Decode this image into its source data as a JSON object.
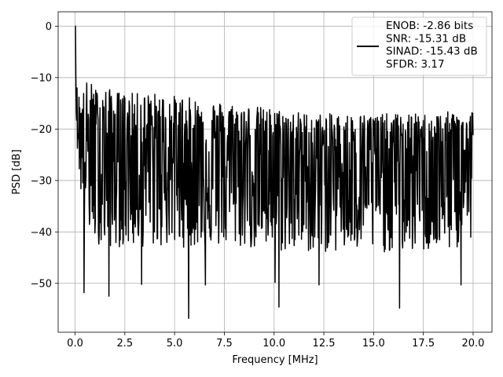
{
  "chart_data": {
    "type": "line",
    "title": "",
    "xlabel": "Frequency [MHz]",
    "ylabel": "PSD [dB]",
    "xlim": [
      -0.85,
      20.95
    ],
    "ylim": [
      -59.5,
      2.8
    ],
    "xticks": [
      0.0,
      2.5,
      5.0,
      7.5,
      10.0,
      12.5,
      15.0,
      17.5,
      20.0
    ],
    "xtick_labels": [
      "0.0",
      "2.5",
      "5.0",
      "7.5",
      "10.0",
      "12.5",
      "15.0",
      "17.5",
      "20.0"
    ],
    "yticks": [
      0,
      -10,
      -20,
      -30,
      -40,
      -50
    ],
    "ytick_labels": [
      "0",
      "−10",
      "−20",
      "−30",
      "−40",
      "−50"
    ],
    "grid": true,
    "legend_position": "top-right",
    "legend": [
      "ENOB: -2.86 bits",
      "SNR: -15.31 dB",
      "SINAD: -15.43 dB",
      "SFDR: 3.17"
    ],
    "series": [
      {
        "color": "#000000",
        "x_range": [
          0.0,
          20.0
        ],
        "num_points": 1024,
        "x": [
          0.0,
          0.05,
          0.1,
          0.2,
          0.3,
          0.45,
          0.65,
          1.0,
          1.5,
          2.5,
          4.0,
          6.0,
          8.0,
          10.0,
          12.0,
          14.0,
          16.0,
          18.0,
          20.0
        ],
        "y_upper": [
          0,
          -5,
          -12,
          -13,
          -14,
          -12,
          -10,
          -12,
          -12,
          -13,
          -13,
          -14,
          -15,
          -16,
          -17,
          -17,
          -17,
          -17,
          -16
        ],
        "y_lower": [
          -10,
          -15,
          -24,
          -28,
          -33,
          -38,
          -40,
          -42,
          -43,
          -43,
          -43,
          -43,
          -43,
          -44,
          -44,
          -44,
          -44,
          -44,
          -43
        ],
        "y_center": [
          0,
          -8,
          -17,
          -20,
          -22,
          -24,
          -24,
          -25,
          -25,
          -25,
          -25,
          -26,
          -26,
          -27,
          -27,
          -27,
          -27,
          -27,
          -27
        ],
        "minima": [
          {
            "x": 0.45,
            "y": -51.8
          },
          {
            "x": 1.7,
            "y": -52.5
          },
          {
            "x": 3.35,
            "y": -50.2
          },
          {
            "x": 5.7,
            "y": -56.8
          },
          {
            "x": 6.55,
            "y": -50.3
          },
          {
            "x": 10.05,
            "y": -49.8
          },
          {
            "x": 10.25,
            "y": -54.6
          },
          {
            "x": 12.25,
            "y": -50.3
          },
          {
            "x": 16.3,
            "y": -54.8
          },
          {
            "x": 19.4,
            "y": -50.3
          }
        ]
      }
    ]
  }
}
